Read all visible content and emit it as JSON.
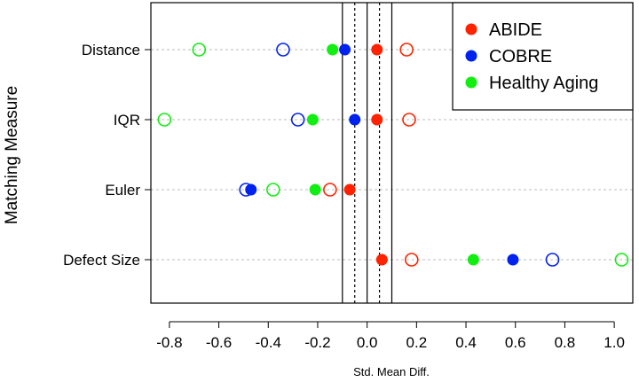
{
  "chart_data": {
    "type": "scatter",
    "xlabel": "Std. Mean Diff.",
    "ylabel": "Matching Measure",
    "xlim": [
      -0.875,
      1.075
    ],
    "x_ticks": [
      -0.8,
      -0.6,
      -0.4,
      -0.2,
      0.0,
      0.2,
      0.4,
      0.6,
      0.8,
      1.0
    ],
    "x_tick_labels": [
      "-0.8",
      "-0.6",
      "-0.4",
      "-0.2",
      "0.0",
      "0.2",
      "0.4",
      "0.6",
      "0.8",
      "1.0"
    ],
    "categories": [
      "Distance",
      "IQR",
      "Euler",
      "Defect Size"
    ],
    "reference_lines": {
      "solid": [
        -0.1,
        0.0,
        0.1
      ],
      "dotted": [
        -0.05,
        0.05
      ]
    },
    "grid": "horizontal dotted",
    "legend_position": "top-right",
    "series": [
      {
        "name": "ABIDE",
        "color": "#ff2200",
        "filled": [
          0.04,
          0.04,
          -0.07,
          0.06
        ],
        "hollow": [
          0.16,
          0.17,
          -0.15,
          0.18
        ]
      },
      {
        "name": "COBRE",
        "color": "#0022ee",
        "filled": [
          -0.09,
          -0.05,
          -0.47,
          0.59
        ],
        "hollow": [
          -0.34,
          -0.28,
          -0.49,
          0.75
        ]
      },
      {
        "name": "Healthy Aging",
        "color": "#11ee11",
        "filled": [
          -0.14,
          -0.22,
          -0.21,
          0.43
        ],
        "hollow": [
          -0.68,
          -0.82,
          -0.38,
          1.03
        ]
      }
    ]
  }
}
